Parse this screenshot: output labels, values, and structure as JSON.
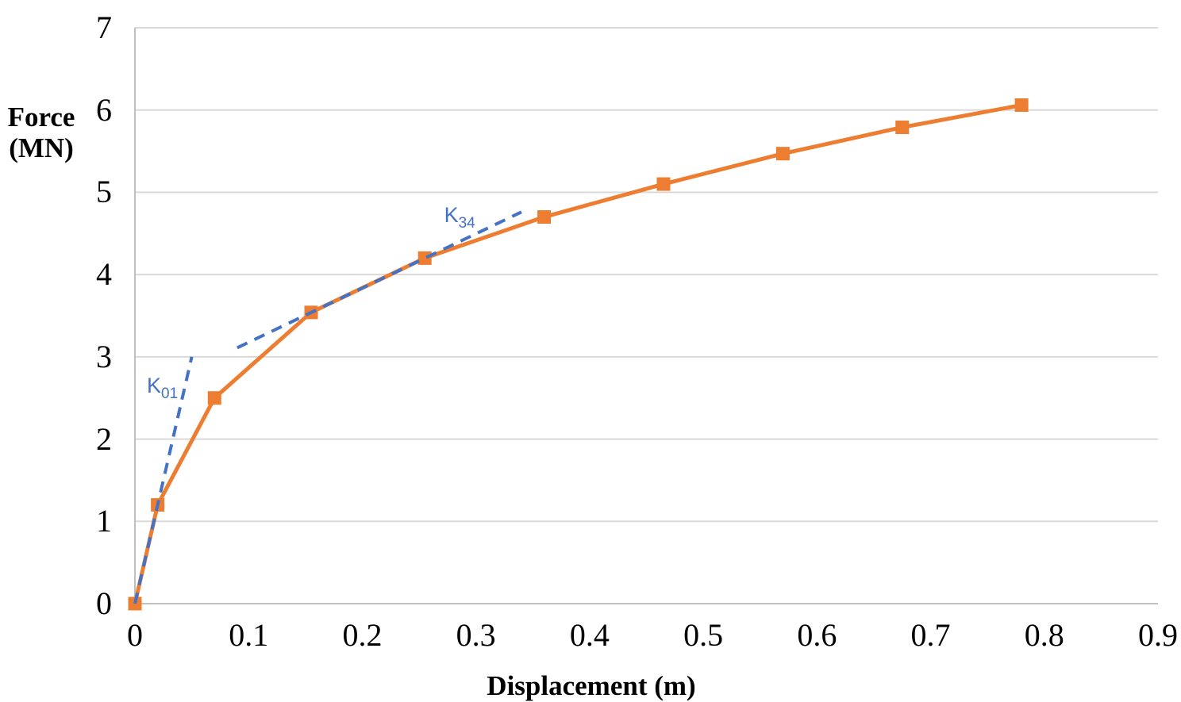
{
  "chart_data": {
    "type": "line",
    "title": "",
    "xlabel": "Displacement (m)",
    "ylabel_lines": [
      "Force",
      "(MN)"
    ],
    "xlim": [
      0,
      0.9
    ],
    "ylim": [
      0,
      7
    ],
    "grid": "horizontal",
    "legend": "none",
    "x_ticks": [
      {
        "value": 0,
        "label": "0"
      },
      {
        "value": 0.1,
        "label": "0.1"
      },
      {
        "value": 0.2,
        "label": "0.2"
      },
      {
        "value": 0.3,
        "label": "0.3"
      },
      {
        "value": 0.4,
        "label": "0.4"
      },
      {
        "value": 0.5,
        "label": "0.5"
      },
      {
        "value": 0.6,
        "label": "0.6"
      },
      {
        "value": 0.7,
        "label": "0.7"
      },
      {
        "value": 0.8,
        "label": "0.8"
      },
      {
        "value": 0.9,
        "label": "0.9"
      }
    ],
    "y_ticks": [
      {
        "value": 0,
        "label": "0"
      },
      {
        "value": 1,
        "label": "1"
      },
      {
        "value": 2,
        "label": "2"
      },
      {
        "value": 3,
        "label": "3"
      },
      {
        "value": 4,
        "label": "4"
      },
      {
        "value": 5,
        "label": "5"
      },
      {
        "value": 6,
        "label": "6"
      },
      {
        "value": 7,
        "label": "7"
      }
    ],
    "series": [
      {
        "name": "force-displacement-curve",
        "color": "#ED7D31",
        "line_style": "solid",
        "marker": "square",
        "points": [
          [
            0,
            0
          ],
          [
            0.02,
            1.2
          ],
          [
            0.07,
            2.5
          ],
          [
            0.155,
            3.54
          ],
          [
            0.255,
            4.2
          ],
          [
            0.36,
            4.7
          ],
          [
            0.465,
            5.1
          ],
          [
            0.57,
            5.47
          ],
          [
            0.675,
            5.79
          ],
          [
            0.78,
            6.06
          ]
        ]
      }
    ],
    "annotations": [
      {
        "name": "K01-secant-line",
        "label_main": "K",
        "label_sub": "01",
        "color": "#4472C4",
        "line_style": "dashed",
        "from": [
          0,
          0
        ],
        "to": [
          0.05,
          3.0
        ],
        "label_anchor": [
          0.0105,
          2.565
        ]
      },
      {
        "name": "K34-secant-line",
        "label_main": "K",
        "label_sub": "34",
        "color": "#4472C4",
        "line_style": "dashed",
        "from": [
          0.09,
          3.11
        ],
        "to": [
          0.34,
          4.76
        ],
        "label_anchor": [
          0.272,
          4.64
        ]
      }
    ],
    "colors": {
      "series_orange": "#ED7D31",
      "annotation_blue": "#4472C4",
      "gridline": "#D9D9D9",
      "axis_line": "#BFBFBF",
      "text": "#000000"
    }
  }
}
